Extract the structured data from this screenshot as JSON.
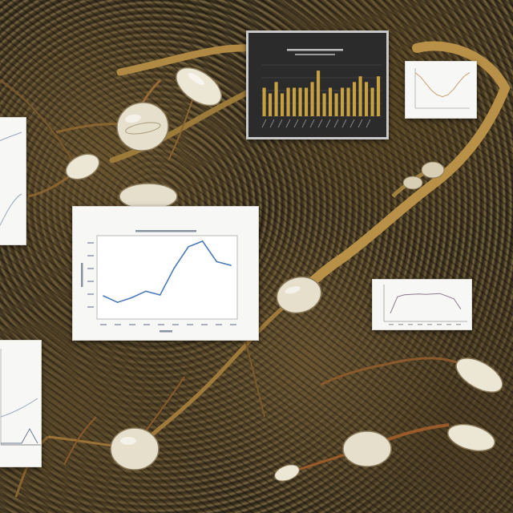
{
  "scene": {
    "description_colors": {
      "soil": "#3a3020",
      "root": "#a07a3a",
      "seed": "#e8e2d0",
      "panel_bg": "#f7f7f5",
      "dark_panel_bg": "#2b2b2b",
      "line_color": "#4a7ab8",
      "bar_color": "#c8a040"
    }
  },
  "chart_data": [
    {
      "type": "line",
      "title": "",
      "x": [
        0,
        1,
        2,
        3,
        4,
        5,
        6,
        7,
        8,
        9
      ],
      "series": [
        {
          "values": [
            2.5,
            1.8,
            2.3,
            3.0,
            2.6,
            5.5,
            7.8,
            8.4,
            6.2,
            5.8
          ]
        }
      ],
      "ylim": [
        0,
        9
      ],
      "grid": false
    },
    {
      "type": "bar",
      "title": "",
      "categories": [
        "1",
        "2",
        "3",
        "4",
        "5",
        "6",
        "7",
        "8",
        "9",
        "10",
        "11",
        "12",
        "13",
        "14",
        "15",
        "16",
        "17",
        "18",
        "19",
        "20"
      ],
      "values": [
        5,
        4,
        6,
        4,
        5,
        5,
        5,
        5,
        6,
        8,
        4,
        5,
        4,
        5,
        5,
        6,
        7,
        6,
        5,
        7
      ],
      "ylim": [
        0,
        9
      ],
      "grid": true
    },
    {
      "type": "line",
      "title": "",
      "x": [
        0,
        1,
        2,
        3,
        4,
        5,
        6,
        7,
        8,
        9,
        10
      ],
      "series": [
        {
          "values": [
            8,
            7,
            5.5,
            4,
            3,
            2.6,
            3,
            4.2,
            5.8,
            7.2,
            8
          ]
        }
      ],
      "ylim": [
        0,
        9
      ]
    },
    {
      "type": "line",
      "title": "",
      "x": [
        0,
        1,
        2,
        3,
        4,
        5,
        6,
        7,
        8,
        9,
        10
      ],
      "series": [
        {
          "values": [
            2,
            6,
            6.5,
            6.6,
            6.7,
            6.6,
            6.7,
            6.8,
            6.2,
            5.5,
            3
          ]
        }
      ],
      "ylim": [
        0,
        9
      ]
    }
  ]
}
